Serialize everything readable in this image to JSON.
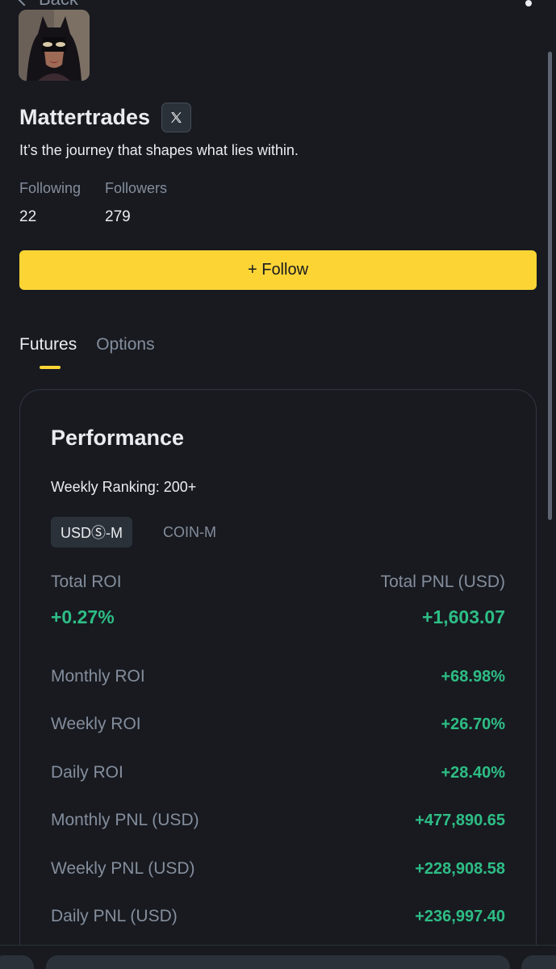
{
  "topbar": {
    "back_label": "Back"
  },
  "profile": {
    "name": "Mattertrades",
    "bio": "It’s the journey that shapes what lies within.",
    "following_label": "Following",
    "following_count": "22",
    "followers_label": "Followers",
    "followers_count": "279",
    "follow_button": "+ Follow"
  },
  "tabs": [
    {
      "label": "Futures",
      "active": true
    },
    {
      "label": "Options",
      "active": false
    }
  ],
  "performance": {
    "title": "Performance",
    "weekly_ranking": "Weekly Ranking: 200+",
    "market_toggle": [
      {
        "label": "USDⓈ-M",
        "active": true
      },
      {
        "label": "COIN-M",
        "active": false
      }
    ],
    "total_roi_label": "Total ROI",
    "total_roi_value": "+0.27%",
    "total_pnl_label": "Total PNL (USD)",
    "total_pnl_value": "+1,603.07",
    "metrics": [
      {
        "label": "Monthly ROI",
        "value": "+68.98%"
      },
      {
        "label": "Weekly ROI",
        "value": "+26.70%"
      },
      {
        "label": "Daily ROI",
        "value": "+28.40%"
      },
      {
        "label": "Monthly PNL (USD)",
        "value": "+477,890.65"
      },
      {
        "label": "Weekly PNL (USD)",
        "value": "+228,908.58"
      },
      {
        "label": "Daily PNL (USD)",
        "value": "+236,997.40"
      }
    ]
  },
  "colors": {
    "background": "#181a20",
    "accent_yellow": "#fcd535",
    "positive_green": "#2ebd85",
    "muted_text": "#848e9c",
    "primary_text": "#eaecef"
  },
  "icons": {
    "back": "chevron-left-icon",
    "more": "more-dot-icon",
    "social": "x-logo-icon"
  }
}
